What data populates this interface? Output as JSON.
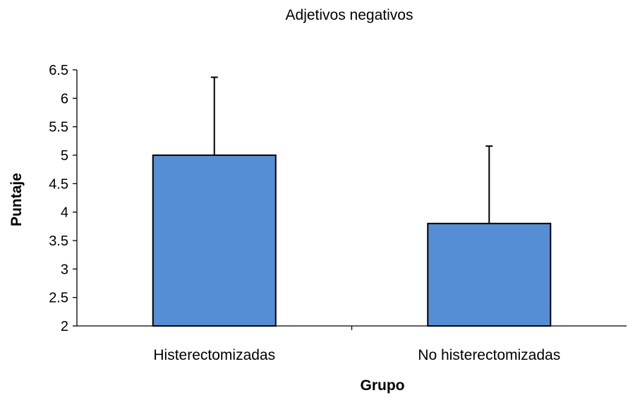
{
  "chart_data": {
    "type": "bar",
    "title": "Adjetivos negativos",
    "xlabel": "Grupo",
    "ylabel": "Puntaje",
    "categories": [
      "Histerectomizadas",
      "No histerectomizadas"
    ],
    "values": [
      5.0,
      3.8
    ],
    "error_bars": [
      1.37,
      1.36
    ],
    "ylim": [
      2,
      6.5
    ],
    "yticks": [
      "6.5",
      "6",
      "5.5",
      "5",
      "4.5",
      "4",
      "3.5",
      "3",
      "2.5",
      "2"
    ],
    "grid": false,
    "legend": "none",
    "bar_color": "#558ED5",
    "bar_edge_color": "#000000"
  }
}
